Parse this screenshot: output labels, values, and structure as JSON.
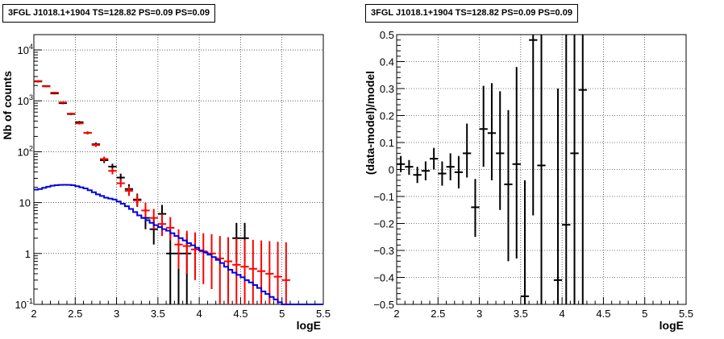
{
  "chart_data": [
    {
      "type": "line",
      "title": "3FGL J1018.1+1904 TS=128.82 PS=0.09 PS=0.09",
      "xlabel": "logE",
      "ylabel": "Nb of counts",
      "xlim": [
        2,
        5.5
      ],
      "ylim": [
        0.1,
        20000
      ],
      "yscale": "log",
      "grid": true,
      "x_ticks": [
        "2",
        "2.5",
        "3",
        "3.5",
        "4",
        "4.5",
        "5",
        "5.5"
      ],
      "y_ticks": [
        "10^{-1}",
        "1",
        "10",
        "10^{2}",
        "10^{3}",
        "10^{4}"
      ],
      "series": [
        {
          "color": "#000000",
          "style": "errorbars",
          "points": [
            {
              "x": 2.05,
              "y": 2400,
              "lo": 2300,
              "hi": 2500
            },
            {
              "x": 2.15,
              "y": 1950,
              "lo": 1880,
              "hi": 2020
            },
            {
              "x": 2.25,
              "y": 1400,
              "lo": 1340,
              "hi": 1460
            },
            {
              "x": 2.35,
              "y": 900,
              "lo": 860,
              "hi": 945
            },
            {
              "x": 2.45,
              "y": 550,
              "lo": 525,
              "hi": 575
            },
            {
              "x": 2.55,
              "y": 380,
              "lo": 360,
              "hi": 400
            },
            {
              "x": 2.65,
              "y": 235,
              "lo": 220,
              "hi": 250
            },
            {
              "x": 2.75,
              "y": 140,
              "lo": 128,
              "hi": 152
            },
            {
              "x": 2.85,
              "y": 68,
              "lo": 60,
              "hi": 76
            },
            {
              "x": 2.95,
              "y": 51,
              "lo": 44,
              "hi": 58
            },
            {
              "x": 3.05,
              "y": 31,
              "lo": 26,
              "hi": 37
            },
            {
              "x": 3.15,
              "y": 18.5,
              "lo": 14.5,
              "hi": 23
            },
            {
              "x": 3.25,
              "y": 11.5,
              "lo": 8.5,
              "hi": 15
            },
            {
              "x": 3.35,
              "y": 5,
              "lo": 3,
              "hi": 7.5
            },
            {
              "x": 3.45,
              "y": 3,
              "lo": 1.5,
              "hi": 5
            },
            {
              "x": 3.55,
              "y": 6,
              "lo": 3.5,
              "hi": 9
            },
            {
              "x": 3.65,
              "y": 1,
              "lo": 0.1,
              "hi": 2.5
            },
            {
              "x": 3.75,
              "y": 1,
              "lo": 0.1,
              "hi": 2.5
            },
            {
              "x": 3.85,
              "y": 1,
              "lo": 0.1,
              "hi": 2.5
            },
            {
              "x": 4.45,
              "y": 2,
              "lo": 0.7,
              "hi": 4
            },
            {
              "x": 4.55,
              "y": 2,
              "lo": 0.7,
              "hi": 4
            }
          ]
        },
        {
          "color": "#ff0000",
          "style": "errorbars",
          "points": [
            {
              "x": 2.05,
              "y": 2450,
              "lo": 2350,
              "hi": 2550
            },
            {
              "x": 2.15,
              "y": 1920,
              "lo": 1850,
              "hi": 1990
            },
            {
              "x": 2.25,
              "y": 1450,
              "lo": 1390,
              "hi": 1510
            },
            {
              "x": 2.35,
              "y": 930,
              "lo": 890,
              "hi": 970
            },
            {
              "x": 2.45,
              "y": 560,
              "lo": 535,
              "hi": 585
            },
            {
              "x": 2.55,
              "y": 360,
              "lo": 342,
              "hi": 378
            },
            {
              "x": 2.65,
              "y": 235,
              "lo": 220,
              "hi": 250
            },
            {
              "x": 2.75,
              "y": 135,
              "lo": 124,
              "hi": 146
            },
            {
              "x": 2.85,
              "y": 72,
              "lo": 64,
              "hi": 80
            },
            {
              "x": 2.95,
              "y": 42,
              "lo": 36,
              "hi": 48
            },
            {
              "x": 3.05,
              "y": 24,
              "lo": 20,
              "hi": 29
            },
            {
              "x": 3.15,
              "y": 17,
              "lo": 13.5,
              "hi": 21
            },
            {
              "x": 3.25,
              "y": 11,
              "lo": 8.2,
              "hi": 14.5
            },
            {
              "x": 3.35,
              "y": 7,
              "lo": 4.5,
              "hi": 10
            },
            {
              "x": 3.45,
              "y": 5,
              "lo": 3,
              "hi": 7.5
            },
            {
              "x": 3.55,
              "y": 3.8,
              "lo": 2.2,
              "hi": 6
            },
            {
              "x": 3.65,
              "y": 3.2,
              "lo": 1.8,
              "hi": 5.2
            },
            {
              "x": 3.75,
              "y": 1.5,
              "lo": 0.5,
              "hi": 3
            },
            {
              "x": 3.85,
              "y": 1.4,
              "lo": 0.4,
              "hi": 2.8
            },
            {
              "x": 3.95,
              "y": 1.2,
              "lo": 0.3,
              "hi": 2.6
            },
            {
              "x": 4.05,
              "y": 1.1,
              "lo": 0.25,
              "hi": 2.5
            },
            {
              "x": 4.15,
              "y": 1,
              "lo": 0.2,
              "hi": 2.4
            },
            {
              "x": 4.25,
              "y": 0.8,
              "lo": 0.1,
              "hi": 2.2
            },
            {
              "x": 4.35,
              "y": 0.7,
              "lo": 0.1,
              "hi": 2.1
            },
            {
              "x": 4.45,
              "y": 0.6,
              "lo": 0.1,
              "hi": 2
            },
            {
              "x": 4.55,
              "y": 0.55,
              "lo": 0.1,
              "hi": 1.9
            },
            {
              "x": 4.65,
              "y": 0.5,
              "lo": 0.1,
              "hi": 1.85
            },
            {
              "x": 4.75,
              "y": 0.45,
              "lo": 0.1,
              "hi": 1.8
            },
            {
              "x": 4.85,
              "y": 0.4,
              "lo": 0.1,
              "hi": 1.75
            },
            {
              "x": 4.95,
              "y": 0.35,
              "lo": 0.1,
              "hi": 1.7
            },
            {
              "x": 5.05,
              "y": 0.3,
              "lo": 0.1,
              "hi": 1.65
            }
          ]
        },
        {
          "color": "#0000dd",
          "style": "step",
          "points": [
            {
              "x": 2.0,
              "y": 18
            },
            {
              "x": 2.05,
              "y": 18.5
            },
            {
              "x": 2.1,
              "y": 19.5
            },
            {
              "x": 2.15,
              "y": 20.5
            },
            {
              "x": 2.2,
              "y": 21.5
            },
            {
              "x": 2.25,
              "y": 22
            },
            {
              "x": 2.3,
              "y": 22.3
            },
            {
              "x": 2.35,
              "y": 22.4
            },
            {
              "x": 2.4,
              "y": 22.3
            },
            {
              "x": 2.45,
              "y": 22
            },
            {
              "x": 2.5,
              "y": 21
            },
            {
              "x": 2.55,
              "y": 20
            },
            {
              "x": 2.6,
              "y": 19
            },
            {
              "x": 2.65,
              "y": 17.5
            },
            {
              "x": 2.7,
              "y": 16
            },
            {
              "x": 2.75,
              "y": 14.5
            },
            {
              "x": 2.8,
              "y": 13.5
            },
            {
              "x": 2.85,
              "y": 12.5
            },
            {
              "x": 2.9,
              "y": 12
            },
            {
              "x": 2.95,
              "y": 11.5
            },
            {
              "x": 3.0,
              "y": 10.5
            },
            {
              "x": 3.05,
              "y": 9.5
            },
            {
              "x": 3.1,
              "y": 8.5
            },
            {
              "x": 3.15,
              "y": 7.5
            },
            {
              "x": 3.2,
              "y": 6.5
            },
            {
              "x": 3.25,
              "y": 5.6
            },
            {
              "x": 3.3,
              "y": 5
            },
            {
              "x": 3.35,
              "y": 4.5
            },
            {
              "x": 3.4,
              "y": 4
            },
            {
              "x": 3.45,
              "y": 3.6
            },
            {
              "x": 3.5,
              "y": 3.3
            },
            {
              "x": 3.55,
              "y": 3
            },
            {
              "x": 3.6,
              "y": 2.8
            },
            {
              "x": 3.65,
              "y": 2.5
            },
            {
              "x": 3.7,
              "y": 2.2
            },
            {
              "x": 3.75,
              "y": 2
            },
            {
              "x": 3.8,
              "y": 1.8
            },
            {
              "x": 3.85,
              "y": 1.6
            },
            {
              "x": 3.9,
              "y": 1.45
            },
            {
              "x": 3.95,
              "y": 1.3
            },
            {
              "x": 4.0,
              "y": 1.15
            },
            {
              "x": 4.05,
              "y": 1.05
            },
            {
              "x": 4.1,
              "y": 0.95
            },
            {
              "x": 4.15,
              "y": 0.85
            },
            {
              "x": 4.2,
              "y": 0.75
            },
            {
              "x": 4.25,
              "y": 0.65
            },
            {
              "x": 4.3,
              "y": 0.55
            },
            {
              "x": 4.35,
              "y": 0.48
            },
            {
              "x": 4.4,
              "y": 0.42
            },
            {
              "x": 4.45,
              "y": 0.38
            },
            {
              "x": 4.5,
              "y": 0.34
            },
            {
              "x": 4.55,
              "y": 0.3
            },
            {
              "x": 4.6,
              "y": 0.27
            },
            {
              "x": 4.65,
              "y": 0.24
            },
            {
              "x": 4.7,
              "y": 0.21
            },
            {
              "x": 4.75,
              "y": 0.18
            },
            {
              "x": 4.8,
              "y": 0.16
            },
            {
              "x": 4.85,
              "y": 0.14
            },
            {
              "x": 4.9,
              "y": 0.125
            },
            {
              "x": 4.95,
              "y": 0.11
            },
            {
              "x": 5.0,
              "y": 0.1
            },
            {
              "x": 5.5,
              "y": 0.1
            }
          ]
        }
      ]
    },
    {
      "type": "scatter",
      "title": "3FGL J1018.1+1904 TS=128.82 PS=0.09 PS=0.09",
      "xlabel": "logE",
      "ylabel": "(data-model)/model",
      "xlim": [
        2,
        5.5
      ],
      "ylim": [
        -0.5,
        0.5
      ],
      "grid": true,
      "x_ticks": [
        "2",
        "2.5",
        "3",
        "3.5",
        "4",
        "4.5",
        "5",
        "5.5"
      ],
      "y_ticks": [
        "-0.5",
        "-0.4",
        "-0.3",
        "-0.2",
        "-0.1",
        "0",
        "0.1",
        "0.2",
        "0.3",
        "0.4",
        "0.5"
      ],
      "series": [
        {
          "color": "#000000",
          "style": "errorbars",
          "points": [
            {
              "x": 2.05,
              "y": 0.02,
              "lo": -0.01,
              "hi": 0.05
            },
            {
              "x": 2.15,
              "y": 0.01,
              "lo": -0.02,
              "hi": 0.035
            },
            {
              "x": 2.25,
              "y": -0.02,
              "lo": -0.05,
              "hi": 0.01
            },
            {
              "x": 2.35,
              "y": -0.005,
              "lo": -0.04,
              "hi": 0.03
            },
            {
              "x": 2.45,
              "y": 0.04,
              "lo": 0.0,
              "hi": 0.08
            },
            {
              "x": 2.55,
              "y": -0.015,
              "lo": -0.06,
              "hi": 0.03
            },
            {
              "x": 2.65,
              "y": 0.01,
              "lo": -0.04,
              "hi": 0.06
            },
            {
              "x": 2.75,
              "y": -0.01,
              "lo": -0.07,
              "hi": 0.05
            },
            {
              "x": 2.85,
              "y": 0.06,
              "lo": -0.03,
              "hi": 0.17
            },
            {
              "x": 2.95,
              "y": -0.14,
              "lo": -0.25,
              "hi": -0.035
            },
            {
              "x": 3.05,
              "y": 0.15,
              "lo": 0.01,
              "hi": 0.31
            },
            {
              "x": 3.15,
              "y": 0.135,
              "lo": -0.04,
              "hi": 0.32
            },
            {
              "x": 3.25,
              "y": 0.06,
              "lo": -0.15,
              "hi": 0.29
            },
            {
              "x": 3.35,
              "y": -0.055,
              "lo": -0.34,
              "hi": 0.22
            },
            {
              "x": 3.45,
              "y": 0.02,
              "lo": -0.33,
              "hi": 0.38
            },
            {
              "x": 3.55,
              "y": -0.47,
              "lo": -0.5,
              "hi": -0.04
            },
            {
              "x": 3.65,
              "y": 0.48,
              "lo": -0.17,
              "hi": 0.5
            },
            {
              "x": 3.75,
              "y": 0.015,
              "lo": -0.5,
              "hi": 0.5
            },
            {
              "x": 3.95,
              "y": -0.41,
              "lo": -0.5,
              "hi": 0.3
            },
            {
              "x": 4.05,
              "y": -0.205,
              "lo": -0.5,
              "hi": 0.5
            },
            {
              "x": 4.15,
              "y": 0.06,
              "lo": -0.5,
              "hi": 0.5
            },
            {
              "x": 4.25,
              "y": 0.295,
              "lo": -0.5,
              "hi": 0.5
            }
          ]
        }
      ]
    }
  ]
}
